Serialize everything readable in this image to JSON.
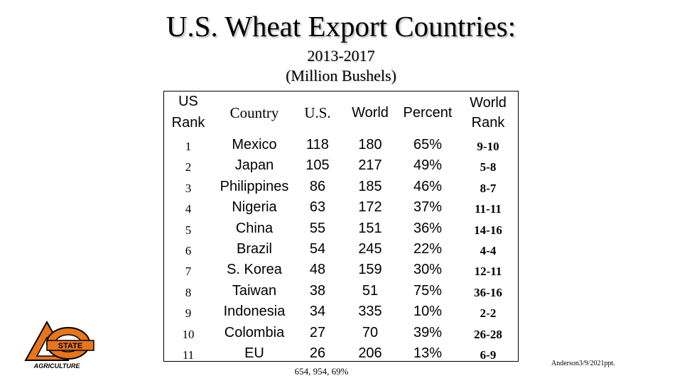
{
  "slide": {
    "title": "U.S. Wheat Export Countries:",
    "subtitle_years": "2013-2017",
    "subtitle_units": "(Million Bushels)",
    "footnote": "654, 954, 69%",
    "credit": "Anderson3/9/2021ppt.",
    "logo": {
      "icon": "oklahoma-state-agriculture-logo",
      "primary_color": "#E8751A",
      "text": "AGRICULTURE"
    }
  },
  "table": {
    "headers": {
      "rank_line1": "US",
      "rank_line2": "Rank",
      "country": "Country",
      "us": "U.S.",
      "world": "World",
      "percent": "Percent",
      "world_rank_line1": "World",
      "world_rank_line2": "Rank"
    },
    "rows": [
      {
        "rank": "1",
        "country": "Mexico",
        "us": "118",
        "world": "180",
        "percent": "65%",
        "world_rank": "9-10"
      },
      {
        "rank": "2",
        "country": "Japan",
        "us": "105",
        "world": "217",
        "percent": "49%",
        "world_rank": "5-8"
      },
      {
        "rank": "3",
        "country": "Philippines",
        "us": "86",
        "world": "185",
        "percent": "46%",
        "world_rank": "8-7"
      },
      {
        "rank": "4",
        "country": "Nigeria",
        "us": "63",
        "world": "172",
        "percent": "37%",
        "world_rank": "11-11"
      },
      {
        "rank": "5",
        "country": "China",
        "us": "55",
        "world": "151",
        "percent": "36%",
        "world_rank": "14-16"
      },
      {
        "rank": "6",
        "country": "Brazil",
        "us": "54",
        "world": "245",
        "percent": "22%",
        "world_rank": "4-4"
      },
      {
        "rank": "7",
        "country": "S. Korea",
        "us": "48",
        "world": "159",
        "percent": "30%",
        "world_rank": "12-11"
      },
      {
        "rank": "8",
        "country": "Taiwan",
        "us": "38",
        "world": "51",
        "percent": "75%",
        "world_rank": "36-16"
      },
      {
        "rank": "9",
        "country": "Indonesia",
        "us": "34",
        "world": "335",
        "percent": "10%",
        "world_rank": "2-2"
      },
      {
        "rank": "10",
        "country": "Colombia",
        "us": "27",
        "world": "70",
        "percent": "39%",
        "world_rank": "26-28"
      },
      {
        "rank": "11",
        "country": "EU",
        "us": "26",
        "world": "206",
        "percent": "13%",
        "world_rank": "6-9"
      }
    ]
  }
}
